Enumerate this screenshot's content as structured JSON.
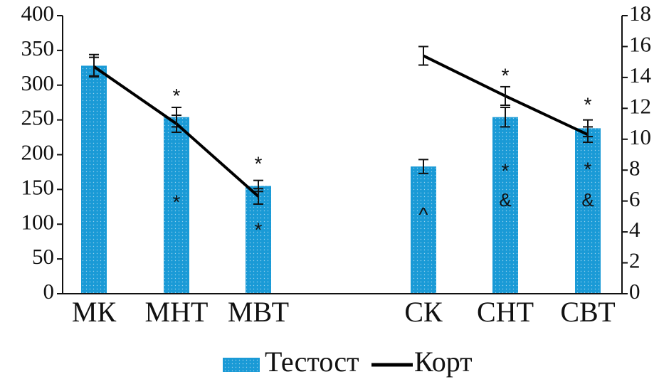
{
  "chart_data": {
    "type": "bar",
    "title": "",
    "xlabel": "",
    "ylabel": "",
    "y2label": "",
    "categories": [
      "МК",
      "МНТ",
      "МВТ",
      "СК",
      "СНТ",
      "СВТ"
    ],
    "ylim": [
      0,
      400
    ],
    "yticks": [
      0,
      50,
      100,
      150,
      200,
      250,
      300,
      350,
      400
    ],
    "y2lim": [
      0,
      18
    ],
    "y2ticks": [
      0,
      2,
      4,
      6,
      8,
      10,
      12,
      14,
      16,
      18
    ],
    "bar_color": "#1a9ad6",
    "line_color": "#000000",
    "legend_position": "bottom",
    "series": [
      {
        "name": "Тестост",
        "kind": "bar",
        "axis": "left",
        "values": [
          328,
          254,
          155,
          183,
          254,
          238
        ],
        "errors": [
          16,
          14,
          8,
          10,
          14,
          12
        ]
      },
      {
        "name": "Корт",
        "kind": "line",
        "axis": "right",
        "groups": [
          {
            "categories": [
              0,
              1,
              2
            ],
            "values": [
              14.7,
              11.0,
              6.3
            ],
            "errors": [
              0.6,
              0.55,
              0.5
            ]
          },
          {
            "categories": [
              3,
              4,
              5
            ],
            "values": [
              15.4,
              12.8,
              10.3
            ],
            "errors": [
              0.6,
              0.6,
              0.5
            ]
          }
        ]
      }
    ],
    "annotations": [
      {
        "category": 1,
        "text": "*",
        "y_left": 283
      },
      {
        "category": 1,
        "text": "*",
        "y_left": 130
      },
      {
        "category": 2,
        "text": "*",
        "y_left": 185
      },
      {
        "category": 2,
        "text": "*",
        "y_left": 90
      },
      {
        "category": 3,
        "text": "^",
        "y_left": 112
      },
      {
        "category": 4,
        "text": "*",
        "y_left": 312
      },
      {
        "category": 4,
        "text": "*",
        "y_left": 175
      },
      {
        "category": 4,
        "text": "&",
        "y_left": 133
      },
      {
        "category": 5,
        "text": "*",
        "y_left": 270
      },
      {
        "category": 5,
        "text": "*",
        "y_left": 177
      },
      {
        "category": 5,
        "text": "&",
        "y_left": 133
      }
    ]
  }
}
